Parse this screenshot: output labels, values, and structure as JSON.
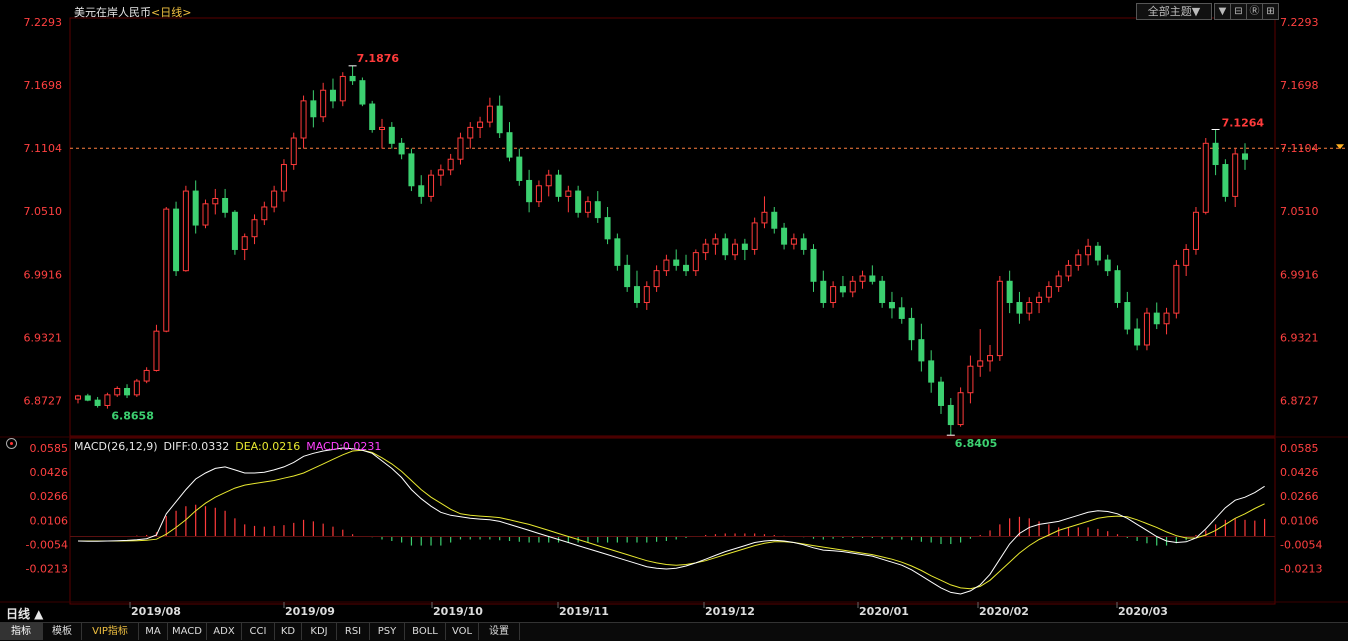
{
  "title": {
    "symbol": "美元在岸人民币",
    "period": "日线",
    "open": "<",
    "close": ">"
  },
  "theme_dropdown": {
    "label": "全部主题▼"
  },
  "window_buttons": [
    "▼",
    "⊟",
    "Ⓡ",
    "⊞"
  ],
  "price_axis": {
    "ticks": [
      7.2293,
      7.1698,
      7.1104,
      7.051,
      6.9916,
      6.9321,
      6.8727
    ],
    "tick_labels": [
      "7.2293",
      "7.1698",
      "7.1104",
      "7.0510",
      "6.9916",
      "6.9321",
      "6.8727"
    ],
    "range": [
      6.843,
      7.2293
    ],
    "current": 7.1104,
    "current_label": "7.1104"
  },
  "annotations": {
    "high": "7.1876",
    "low_start": "6.8658",
    "low": "6.8405",
    "recent_high": "7.1264"
  },
  "macd": {
    "legend": {
      "params": "MACD(26,12,9)",
      "diff": "DIFF:0.0332",
      "dea": "DEA:0.0216",
      "macd": "MACD:0.0231"
    },
    "ticks": [
      0.0585,
      0.0426,
      0.0266,
      0.0106,
      -0.0054,
      -0.0213
    ],
    "tick_labels": [
      "0.0585",
      "0.0426",
      "0.0266",
      "0.0106",
      "-0.0054",
      "-0.0213"
    ],
    "range": [
      -0.042,
      0.0585
    ],
    "colors": {
      "diff": "#ffffff",
      "dea": "#e8e830",
      "macd_label": "#ff40ff"
    }
  },
  "x_axis": {
    "labels": [
      "2019/08",
      "2019/09",
      "2019/10",
      "2019/11",
      "2019/12",
      "2020/01",
      "2020/02",
      "2020/03"
    ]
  },
  "period_label": "日线 ▲",
  "toolbar": [
    "指标",
    "模板",
    "VIP指标",
    "MA",
    "MACD",
    "ADX",
    "CCI",
    "KD",
    "KDJ",
    "RSI",
    "PSY",
    "BOLL",
    "VOL",
    "设置"
  ],
  "colors": {
    "up": "#ff3b3b",
    "down": "#3cd070",
    "grid": "#5a0000",
    "axis_text": "#ff4040"
  },
  "chart_data": {
    "type": "candlestick",
    "title": "美元在岸人民币",
    "ohlc": [
      [
        6.874,
        6.878,
        6.87,
        6.877
      ],
      [
        6.877,
        6.879,
        6.872,
        6.873
      ],
      [
        6.873,
        6.876,
        6.866,
        6.868
      ],
      [
        6.868,
        6.88,
        6.865,
        6.878
      ],
      [
        6.878,
        6.886,
        6.876,
        6.884
      ],
      [
        6.884,
        6.888,
        6.875,
        6.878
      ],
      [
        6.878,
        6.893,
        6.876,
        6.891
      ],
      [
        6.891,
        6.904,
        6.889,
        6.901
      ],
      [
        6.901,
        6.944,
        6.9,
        6.938
      ],
      [
        6.938,
        7.055,
        6.937,
        7.053
      ],
      [
        7.053,
        7.06,
        6.99,
        6.995
      ],
      [
        6.995,
        7.075,
        6.994,
        7.07
      ],
      [
        7.07,
        7.08,
        7.03,
        7.038
      ],
      [
        7.038,
        7.062,
        7.035,
        7.058
      ],
      [
        7.058,
        7.072,
        7.048,
        7.063
      ],
      [
        7.063,
        7.072,
        7.045,
        7.05
      ],
      [
        7.05,
        7.052,
        7.01,
        7.015
      ],
      [
        7.015,
        7.03,
        7.005,
        7.027
      ],
      [
        7.027,
        7.048,
        7.02,
        7.043
      ],
      [
        7.043,
        7.06,
        7.038,
        7.055
      ],
      [
        7.055,
        7.075,
        7.05,
        7.07
      ],
      [
        7.07,
        7.1,
        7.06,
        7.095
      ],
      [
        7.095,
        7.125,
        7.09,
        7.12
      ],
      [
        7.12,
        7.16,
        7.11,
        7.155
      ],
      [
        7.155,
        7.165,
        7.13,
        7.14
      ],
      [
        7.14,
        7.172,
        7.135,
        7.165
      ],
      [
        7.165,
        7.176,
        7.148,
        7.155
      ],
      [
        7.155,
        7.182,
        7.15,
        7.178
      ],
      [
        7.178,
        7.188,
        7.17,
        7.174
      ],
      [
        7.174,
        7.177,
        7.15,
        7.152
      ],
      [
        7.152,
        7.155,
        7.125,
        7.128
      ],
      [
        7.128,
        7.138,
        7.11,
        7.13
      ],
      [
        7.13,
        7.135,
        7.11,
        7.115
      ],
      [
        7.115,
        7.12,
        7.1,
        7.105
      ],
      [
        7.105,
        7.11,
        7.07,
        7.075
      ],
      [
        7.075,
        7.085,
        7.058,
        7.065
      ],
      [
        7.065,
        7.09,
        7.06,
        7.085
      ],
      [
        7.085,
        7.095,
        7.075,
        7.09
      ],
      [
        7.09,
        7.105,
        7.085,
        7.1
      ],
      [
        7.1,
        7.125,
        7.095,
        7.12
      ],
      [
        7.12,
        7.135,
        7.11,
        7.13
      ],
      [
        7.13,
        7.14,
        7.12,
        7.135
      ],
      [
        7.135,
        7.158,
        7.13,
        7.15
      ],
      [
        7.15,
        7.16,
        7.12,
        7.125
      ],
      [
        7.125,
        7.135,
        7.098,
        7.102
      ],
      [
        7.102,
        7.11,
        7.075,
        7.08
      ],
      [
        7.08,
        7.09,
        7.05,
        7.06
      ],
      [
        7.06,
        7.08,
        7.055,
        7.075
      ],
      [
        7.075,
        7.09,
        7.065,
        7.085
      ],
      [
        7.085,
        7.09,
        7.06,
        7.065
      ],
      [
        7.065,
        7.075,
        7.05,
        7.07
      ],
      [
        7.07,
        7.075,
        7.045,
        7.05
      ],
      [
        7.05,
        7.065,
        7.045,
        7.06
      ],
      [
        7.06,
        7.07,
        7.04,
        7.045
      ],
      [
        7.045,
        7.055,
        7.02,
        7.025
      ],
      [
        7.025,
        7.03,
        6.995,
        7.0
      ],
      [
        7.0,
        7.01,
        6.975,
        6.98
      ],
      [
        6.98,
        6.995,
        6.96,
        6.965
      ],
      [
        6.965,
        6.985,
        6.958,
        6.98
      ],
      [
        6.98,
        7.0,
        6.975,
        6.995
      ],
      [
        6.995,
        7.01,
        6.99,
        7.005
      ],
      [
        7.005,
        7.015,
        6.995,
        7.0
      ],
      [
        7.0,
        7.01,
        6.99,
        6.995
      ],
      [
        6.995,
        7.015,
        6.99,
        7.012
      ],
      [
        7.012,
        7.025,
        7.005,
        7.02
      ],
      [
        7.02,
        7.03,
        7.01,
        7.025
      ],
      [
        7.025,
        7.03,
        7.005,
        7.01
      ],
      [
        7.01,
        7.025,
        7.005,
        7.02
      ],
      [
        7.02,
        7.025,
        7.005,
        7.015
      ],
      [
        7.015,
        7.045,
        7.01,
        7.04
      ],
      [
        7.04,
        7.065,
        7.035,
        7.05
      ],
      [
        7.05,
        7.055,
        7.03,
        7.035
      ],
      [
        7.035,
        7.04,
        7.015,
        7.02
      ],
      [
        7.02,
        7.03,
        7.015,
        7.025
      ],
      [
        7.025,
        7.03,
        7.01,
        7.015
      ],
      [
        7.015,
        7.02,
        6.975,
        6.985
      ],
      [
        6.985,
        6.995,
        6.96,
        6.965
      ],
      [
        6.965,
        6.985,
        6.96,
        6.98
      ],
      [
        6.98,
        6.99,
        6.97,
        6.975
      ],
      [
        6.975,
        6.99,
        6.97,
        6.985
      ],
      [
        6.985,
        6.995,
        6.978,
        6.99
      ],
      [
        6.99,
        7.0,
        6.982,
        6.985
      ],
      [
        6.985,
        6.99,
        6.96,
        6.965
      ],
      [
        6.965,
        6.975,
        6.95,
        6.96
      ],
      [
        6.96,
        6.97,
        6.945,
        6.95
      ],
      [
        6.95,
        6.96,
        6.92,
        6.93
      ],
      [
        6.93,
        6.945,
        6.9,
        6.91
      ],
      [
        6.91,
        6.92,
        6.88,
        6.89
      ],
      [
        6.89,
        6.895,
        6.86,
        6.868
      ],
      [
        6.868,
        6.875,
        6.84,
        6.85
      ],
      [
        6.85,
        6.885,
        6.848,
        6.88
      ],
      [
        6.88,
        6.915,
        6.87,
        6.905
      ],
      [
        6.905,
        6.94,
        6.895,
        6.91
      ],
      [
        6.91,
        6.925,
        6.9,
        6.915
      ],
      [
        6.915,
        6.99,
        6.91,
        6.985
      ],
      [
        6.985,
        6.995,
        6.955,
        6.965
      ],
      [
        6.965,
        6.975,
        6.945,
        6.955
      ],
      [
        6.955,
        6.97,
        6.948,
        6.965
      ],
      [
        6.965,
        6.975,
        6.955,
        6.97
      ],
      [
        6.97,
        6.985,
        6.965,
        6.98
      ],
      [
        6.98,
        6.995,
        6.975,
        6.99
      ],
      [
        6.99,
        7.005,
        6.985,
        7.0
      ],
      [
        7.0,
        7.015,
        6.995,
        7.01
      ],
      [
        7.01,
        7.025,
        7.0,
        7.018
      ],
      [
        7.018,
        7.022,
        7.0,
        7.005
      ],
      [
        7.005,
        7.01,
        6.99,
        6.995
      ],
      [
        6.995,
        7.0,
        6.96,
        6.965
      ],
      [
        6.965,
        6.975,
        6.935,
        6.94
      ],
      [
        6.94,
        6.95,
        6.92,
        6.925
      ],
      [
        6.925,
        6.96,
        6.92,
        6.955
      ],
      [
        6.955,
        6.965,
        6.94,
        6.945
      ],
      [
        6.945,
        6.96,
        6.935,
        6.955
      ],
      [
        6.955,
        7.005,
        6.95,
        7.0
      ],
      [
        7.0,
        7.02,
        6.99,
        7.015
      ],
      [
        7.015,
        7.055,
        7.01,
        7.05
      ],
      [
        7.05,
        7.12,
        7.048,
        7.115
      ],
      [
        7.115,
        7.128,
        7.085,
        7.095
      ],
      [
        7.095,
        7.1,
        7.06,
        7.065
      ],
      [
        7.065,
        7.11,
        7.055,
        7.105
      ],
      [
        7.105,
        7.115,
        7.09,
        7.1
      ]
    ],
    "macd": {
      "diff": [
        -0.003,
        -0.0031,
        -0.0032,
        -0.003,
        -0.0028,
        -0.0026,
        -0.0022,
        -0.0015,
        0.001,
        0.015,
        0.023,
        0.031,
        0.038,
        0.042,
        0.045,
        0.046,
        0.044,
        0.042,
        0.042,
        0.0425,
        0.044,
        0.046,
        0.049,
        0.053,
        0.055,
        0.0565,
        0.0575,
        0.0585,
        0.058,
        0.057,
        0.055,
        0.05,
        0.045,
        0.039,
        0.031,
        0.025,
        0.02,
        0.016,
        0.014,
        0.013,
        0.012,
        0.0115,
        0.011,
        0.01,
        0.008,
        0.006,
        0.004,
        0.002,
        0.0,
        -0.002,
        -0.004,
        -0.006,
        -0.008,
        -0.01,
        -0.012,
        -0.014,
        -0.016,
        -0.018,
        -0.02,
        -0.021,
        -0.0215,
        -0.021,
        -0.0195,
        -0.0175,
        -0.015,
        -0.0125,
        -0.01,
        -0.008,
        -0.006,
        -0.004,
        -0.003,
        -0.0025,
        -0.003,
        -0.004,
        -0.0055,
        -0.0075,
        -0.009,
        -0.0095,
        -0.01,
        -0.011,
        -0.012,
        -0.013,
        -0.015,
        -0.017,
        -0.019,
        -0.022,
        -0.026,
        -0.03,
        -0.034,
        -0.037,
        -0.038,
        -0.036,
        -0.032,
        -0.025,
        -0.015,
        -0.005,
        0.002,
        0.006,
        0.008,
        0.009,
        0.01,
        0.012,
        0.014,
        0.016,
        0.017,
        0.0165,
        0.015,
        0.012,
        0.008,
        0.004,
        0.0,
        -0.003,
        -0.004,
        -0.0035,
        -0.001,
        0.005,
        0.012,
        0.019,
        0.024,
        0.026,
        0.029,
        0.0332
      ],
      "dea": [
        -0.003,
        -0.003,
        -0.003,
        -0.003,
        -0.003,
        -0.0029,
        -0.0028,
        -0.0025,
        -0.0018,
        0.0015,
        0.006,
        0.011,
        0.017,
        0.022,
        0.026,
        0.029,
        0.032,
        0.034,
        0.035,
        0.036,
        0.037,
        0.0385,
        0.04,
        0.042,
        0.045,
        0.048,
        0.051,
        0.054,
        0.0565,
        0.057,
        0.0555,
        0.052,
        0.048,
        0.043,
        0.037,
        0.031,
        0.026,
        0.022,
        0.018,
        0.015,
        0.014,
        0.0135,
        0.013,
        0.0125,
        0.011,
        0.0095,
        0.008,
        0.006,
        0.004,
        0.002,
        0.0,
        -0.002,
        -0.004,
        -0.006,
        -0.008,
        -0.01,
        -0.012,
        -0.014,
        -0.016,
        -0.0175,
        -0.0185,
        -0.019,
        -0.0185,
        -0.0175,
        -0.016,
        -0.014,
        -0.012,
        -0.01,
        -0.008,
        -0.006,
        -0.0045,
        -0.0035,
        -0.0035,
        -0.004,
        -0.005,
        -0.006,
        -0.007,
        -0.008,
        -0.009,
        -0.01,
        -0.011,
        -0.012,
        -0.0135,
        -0.015,
        -0.017,
        -0.0195,
        -0.0225,
        -0.026,
        -0.029,
        -0.032,
        -0.034,
        -0.0345,
        -0.033,
        -0.029,
        -0.023,
        -0.017,
        -0.011,
        -0.006,
        -0.002,
        0.001,
        0.004,
        0.006,
        0.008,
        0.01,
        0.012,
        0.013,
        0.0135,
        0.013,
        0.011,
        0.0085,
        0.006,
        0.003,
        0.0005,
        -0.001,
        -0.001,
        0.001,
        0.004,
        0.008,
        0.012,
        0.015,
        0.0185,
        0.0216
      ],
      "hist": [
        0,
        -0.0001,
        -0.0002,
        0,
        0.0002,
        0.0003,
        0.0006,
        0.001,
        0.0028,
        0.0135,
        0.017,
        0.02,
        0.021,
        0.02,
        0.019,
        0.017,
        0.012,
        0.008,
        0.007,
        0.0065,
        0.007,
        0.0075,
        0.009,
        0.011,
        0.01,
        0.0085,
        0.0065,
        0.0045,
        0.0015,
        0,
        -0.0005,
        -0.002,
        -0.003,
        -0.004,
        -0.006,
        -0.006,
        -0.006,
        -0.006,
        -0.004,
        -0.002,
        -0.002,
        -0.002,
        -0.002,
        -0.0025,
        -0.003,
        -0.0035,
        -0.004,
        -0.004,
        -0.004,
        -0.004,
        -0.004,
        -0.004,
        -0.004,
        -0.004,
        -0.004,
        -0.004,
        -0.004,
        -0.004,
        -0.004,
        -0.0035,
        -0.003,
        -0.002,
        -0.001,
        0,
        0.001,
        0.0015,
        0.002,
        0.002,
        0.002,
        0.002,
        0.0015,
        0.001,
        0.0005,
        0,
        -0.0005,
        -0.0015,
        -0.002,
        -0.0015,
        -0.001,
        -0.001,
        -0.001,
        -0.001,
        -0.0015,
        -0.002,
        -0.002,
        -0.0025,
        -0.0035,
        -0.004,
        -0.005,
        -0.005,
        -0.004,
        -0.0015,
        0.001,
        0.004,
        0.008,
        0.012,
        0.013,
        0.012,
        0.01,
        0.008,
        0.006,
        0.006,
        0.006,
        0.006,
        0.005,
        0.0035,
        0.0015,
        -0.001,
        -0.003,
        -0.0045,
        -0.006,
        -0.006,
        -0.0045,
        -0.0025,
        0.001,
        0.004,
        0.008,
        0.011,
        0.012,
        0.011,
        0.0105,
        0.0116
      ]
    }
  }
}
